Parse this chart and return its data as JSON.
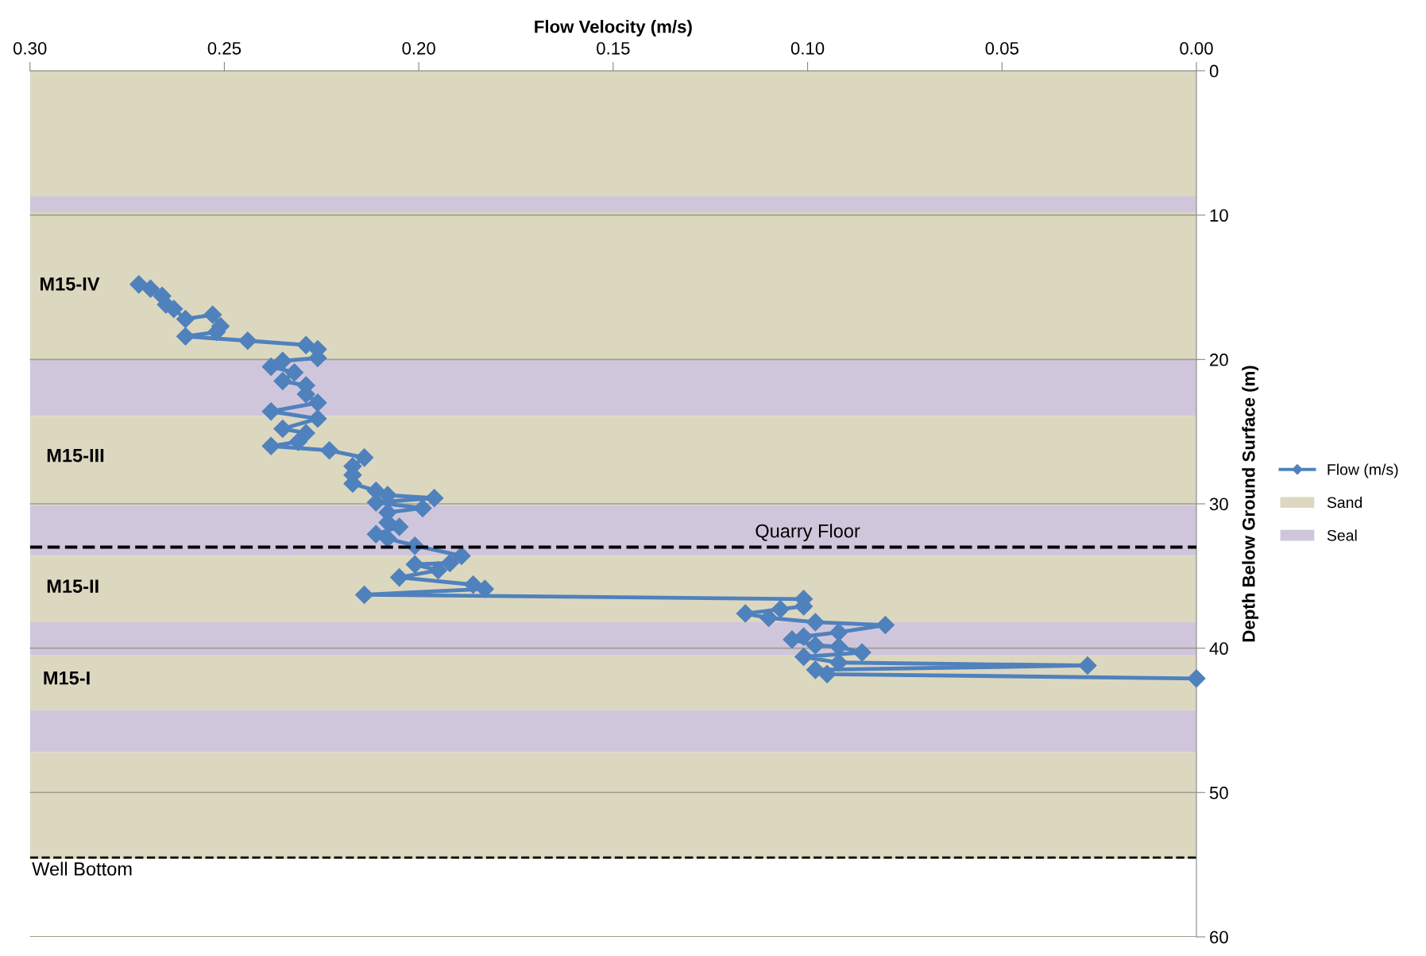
{
  "chart_data": {
    "type": "line",
    "xlabel": "Flow Velocity (m/s)",
    "ylabel": "Depth Below Ground Surface (m)",
    "xlim": [
      0.3,
      0.0
    ],
    "xticks": [
      {
        "value": 0.3,
        "label": "0.30"
      },
      {
        "value": 0.25,
        "label": "0.25"
      },
      {
        "value": 0.2,
        "label": "0.20"
      },
      {
        "value": 0.15,
        "label": "0.15"
      },
      {
        "value": 0.1,
        "label": "0.10"
      },
      {
        "value": 0.05,
        "label": "0.05"
      },
      {
        "value": 0.0,
        "label": "0.00"
      }
    ],
    "ylim": [
      60,
      0
    ],
    "yticks": [
      0,
      10,
      20,
      30,
      40,
      50,
      60
    ],
    "grid": "y",
    "legend": "right",
    "marker": "diamond",
    "line_style": "solid",
    "series": [
      {
        "name": "Flow (m/s)",
        "color": "#4f81bd",
        "x": [
          0.272,
          0.269,
          0.266,
          0.265,
          0.263,
          0.26,
          0.253,
          0.251,
          0.252,
          0.26,
          0.244,
          0.229,
          0.226,
          0.226,
          0.235,
          0.238,
          0.232,
          0.235,
          0.229,
          0.229,
          0.226,
          0.238,
          0.226,
          0.235,
          0.229,
          0.231,
          0.238,
          0.223,
          0.214,
          0.217,
          0.217,
          0.217,
          0.211,
          0.208,
          0.196,
          0.211,
          0.199,
          0.208,
          0.208,
          0.205,
          0.211,
          0.208,
          0.201,
          0.189,
          0.192,
          0.201,
          0.195,
          0.205,
          0.186,
          0.183,
          0.214,
          0.101,
          0.101,
          0.107,
          0.116,
          0.11,
          0.098,
          0.08,
          0.092,
          0.101,
          0.104,
          0.098,
          0.092,
          0.086,
          0.101,
          0.092,
          0.028,
          0.098,
          0.095,
          0.0
        ],
        "values": [
          14.8,
          15.1,
          15.6,
          16.2,
          16.5,
          17.2,
          16.9,
          17.7,
          18.1,
          18.4,
          18.7,
          19.0,
          19.3,
          19.9,
          20.1,
          20.5,
          20.9,
          21.5,
          21.8,
          22.4,
          23.0,
          23.6,
          24.1,
          24.8,
          25.1,
          25.7,
          26.0,
          26.3,
          26.8,
          27.4,
          28.0,
          28.6,
          29.1,
          29.4,
          29.6,
          29.9,
          30.3,
          30.6,
          31.3,
          31.6,
          32.1,
          32.4,
          32.9,
          33.6,
          34.1,
          34.2,
          34.6,
          35.1,
          35.6,
          35.9,
          36.3,
          36.6,
          37.1,
          37.3,
          37.6,
          37.9,
          38.2,
          38.4,
          38.9,
          39.2,
          39.4,
          39.8,
          39.9,
          40.3,
          40.6,
          41.0,
          41.2,
          41.5,
          41.8,
          42.1
        ]
      }
    ],
    "bands": [
      {
        "axis": "y",
        "from": 0,
        "to": 8.7,
        "label": "Sand",
        "color": "#dcd7bf"
      },
      {
        "axis": "y",
        "from": 8.7,
        "to": 9.8,
        "label": "Seal",
        "color": "#d0c6dc"
      },
      {
        "axis": "y",
        "from": 9.8,
        "to": 20,
        "color": "#dcd7bf"
      },
      {
        "axis": "y",
        "from": 20,
        "to": 23.9,
        "color": "#d0c6dc"
      },
      {
        "axis": "y",
        "from": 23.9,
        "to": 30.1,
        "color": "#dcd7bf"
      },
      {
        "axis": "y",
        "from": 30.1,
        "to": 33.6,
        "color": "#d0c6dc"
      },
      {
        "axis": "y",
        "from": 33.6,
        "to": 38.2,
        "color": "#dcd7bf"
      },
      {
        "axis": "y",
        "from": 38.2,
        "to": 40.5,
        "color": "#d0c6dc"
      },
      {
        "axis": "y",
        "from": 40.5,
        "to": 44.3,
        "color": "#dcd7bf"
      },
      {
        "axis": "y",
        "from": 44.3,
        "to": 47.2,
        "color": "#d0c6dc"
      },
      {
        "axis": "y",
        "from": 47.2,
        "to": 54.6,
        "color": "#dcd7bf"
      }
    ],
    "ref_lines": [
      {
        "axis": "y",
        "value": 33,
        "label": "Quarry Floor",
        "color": "#000000",
        "line_style": "dashed"
      },
      {
        "axis": "y",
        "value": 54.5,
        "label": "Well Bottom",
        "color": "#000000",
        "line_style": "dashed"
      }
    ],
    "annotations": [
      "M15-IV",
      "M15-III",
      "M15-II",
      "M15-I"
    ]
  }
}
